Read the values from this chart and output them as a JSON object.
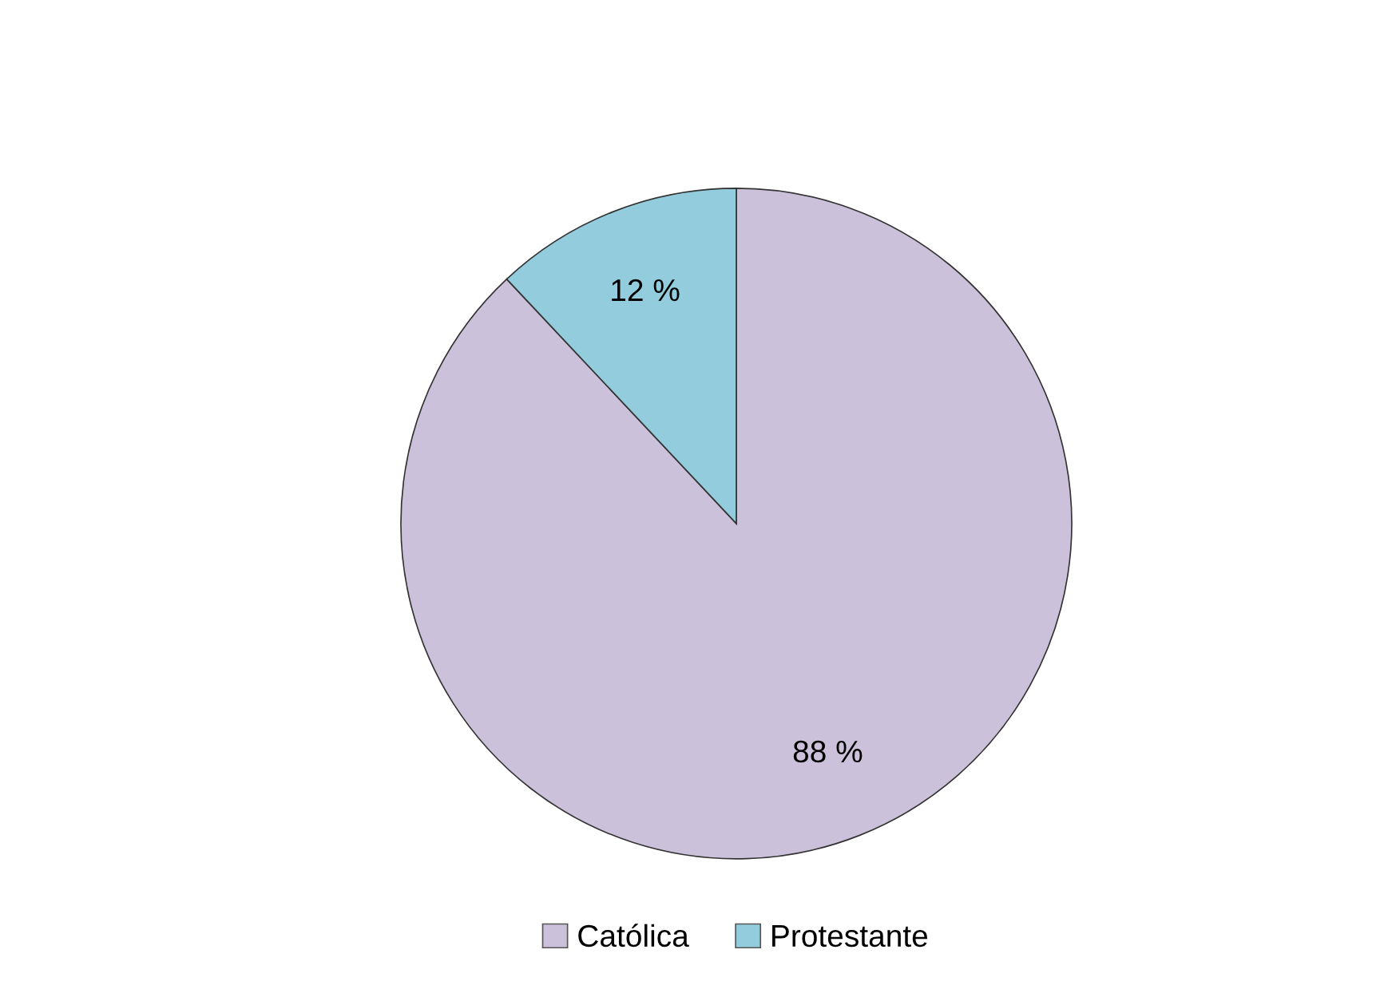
{
  "chart_data": {
    "type": "pie",
    "categories": [
      "Católica",
      "Protestante"
    ],
    "values": [
      88,
      12
    ],
    "colors": [
      "#ccc1da",
      "#93cddd"
    ],
    "value_labels": [
      "88 %",
      "12 %"
    ],
    "legend": "bottom"
  }
}
